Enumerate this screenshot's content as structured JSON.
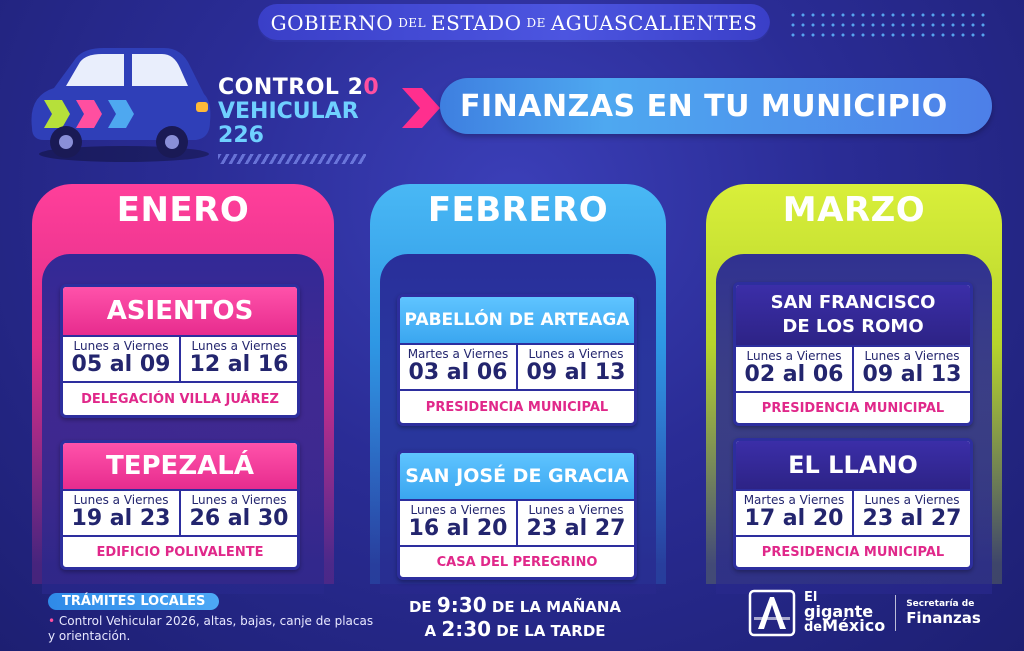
{
  "header": {
    "gov_part1": "GOBIERNO",
    "gov_small1": "DEL",
    "gov_part2": "ESTADO",
    "gov_small2": "DE",
    "gov_part3": "AGUASCALIENTES",
    "logo_line1_a": "CONTROL 2",
    "logo_line1_b": "0",
    "logo_line2_a": "VEHICULAR 2",
    "logo_line2_b": "26",
    "title": "FINANZAS EN TU MUNICIPIO"
  },
  "months": [
    {
      "name": "ENERO",
      "cards": [
        {
          "title_lines": [
            "ASIENTOS"
          ],
          "dates": [
            {
              "days": "Lunes a Viernes",
              "range": "05 al 09"
            },
            {
              "days": "Lunes a Viernes",
              "range": "12 al 16"
            }
          ],
          "place": "DELEGACIÓN VILLA JUÁREZ"
        },
        {
          "title_lines": [
            "TEPEZALÁ"
          ],
          "dates": [
            {
              "days": "Lunes a Viernes",
              "range": "19 al 23"
            },
            {
              "days": "Lunes a Viernes",
              "range": "26 al 30"
            }
          ],
          "place": "EDIFICIO POLIVALENTE"
        }
      ]
    },
    {
      "name": "FEBRERO",
      "cards": [
        {
          "title_lines": [
            "PABELLÓN DE ARTEAGA"
          ],
          "dates": [
            {
              "days": "Martes a Viernes",
              "range": "03 al 06"
            },
            {
              "days": "Lunes a Viernes",
              "range": "09 al 13"
            }
          ],
          "place": "PRESIDENCIA MUNICIPAL"
        },
        {
          "title_lines": [
            "SAN JOSÉ DE GRACIA"
          ],
          "dates": [
            {
              "days": "Lunes a Viernes",
              "range": "16 al 20"
            },
            {
              "days": "Lunes a Viernes",
              "range": "23 al 27"
            }
          ],
          "place": "CASA DEL PEREGRINO"
        }
      ]
    },
    {
      "name": "MARZO",
      "cards": [
        {
          "title_lines": [
            "SAN FRANCISCO",
            "DE LOS ROMO"
          ],
          "dates": [
            {
              "days": "Lunes a Viernes",
              "range": "02 al 06"
            },
            {
              "days": "Lunes a Viernes",
              "range": "09 al 13"
            }
          ],
          "place": "PRESIDENCIA MUNICIPAL"
        },
        {
          "title_lines": [
            "EL LLANO"
          ],
          "dates": [
            {
              "days": "Martes a Viernes",
              "range": "17 al 20"
            },
            {
              "days": "Lunes a Viernes",
              "range": "23 al 27"
            }
          ],
          "place": "PRESIDENCIA MUNICIPAL"
        }
      ]
    }
  ],
  "tramites": {
    "label": "TRÁMITES LOCALES",
    "bullet": "•",
    "text": "Control Vehicular 2026, altas, bajas, canje de placas y orientación."
  },
  "hours": {
    "pre1": "DE",
    "time1": "9:30",
    "post1": "DE LA MAÑANA",
    "pre2": "A",
    "time2": "2:30",
    "post2": "DE LA TARDE"
  },
  "brand": {
    "giant_1": "El",
    "giant_2": "gigante",
    "giant_3": "de",
    "giant_4": "México",
    "sec_1": "Secretaría de",
    "sec_2": "Finanzas"
  },
  "colors": {
    "pink": "#e72c8e",
    "blue": "#3aa6f0",
    "lime": "#b6d42c",
    "indigo": "#2d2386",
    "background": "#2a2c95"
  }
}
